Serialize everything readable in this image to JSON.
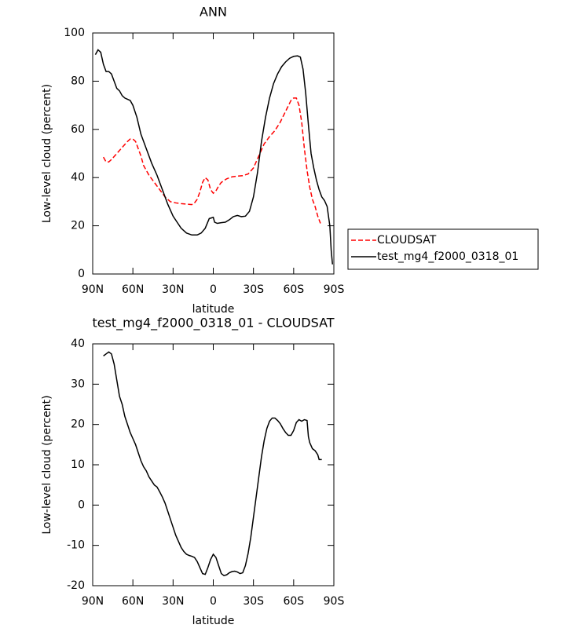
{
  "chart_data": [
    {
      "type": "line",
      "title": "ANN",
      "xlabel": "latitude",
      "ylabel": "Low-level cloud (percent)",
      "xlim": [
        90,
        -90
      ],
      "ylim": [
        0,
        100
      ],
      "xticks": [
        {
          "value": 90,
          "label": "90N"
        },
        {
          "value": 60,
          "label": "60N"
        },
        {
          "value": 30,
          "label": "30N"
        },
        0,
        {
          "value": -30,
          "label": "30S"
        },
        {
          "value": -60,
          "label": "60S"
        },
        {
          "value": -90,
          "label": "90S"
        }
      ],
      "yticks": [
        0,
        20,
        40,
        60,
        80,
        100
      ],
      "legend": "right",
      "series": [
        {
          "name": "CLOUDSAT",
          "color": "#ff0000",
          "line_style": "dashed",
          "x": [
            82,
            80,
            78,
            76,
            72,
            68,
            64,
            62,
            60,
            58,
            56,
            54,
            52,
            48,
            44,
            40,
            36,
            32,
            28,
            24,
            20,
            16,
            14,
            12,
            10,
            8,
            6,
            4,
            2,
            0,
            -2,
            -4,
            -6,
            -10,
            -14,
            -18,
            -22,
            -26,
            -30,
            -34,
            -38,
            -42,
            -46,
            -50,
            -54,
            -58,
            -60,
            -62,
            -64,
            -66,
            -68,
            -70,
            -72,
            -74,
            -76,
            -78,
            -80
          ],
          "values": [
            48.5,
            46.5,
            46.5,
            47.5,
            50,
            52.5,
            55,
            56,
            56,
            55,
            52,
            49,
            45,
            41,
            38,
            35,
            32,
            30,
            29.5,
            29.2,
            29,
            28.8,
            29.5,
            31,
            34,
            38,
            40,
            39,
            35,
            33.5,
            34.5,
            36.5,
            38,
            39.5,
            40.3,
            40.6,
            40.8,
            41.5,
            44,
            49,
            54,
            57,
            59.5,
            63,
            67.5,
            72,
            73,
            73,
            70,
            63,
            52,
            43,
            36,
            31,
            28,
            24,
            21
          ]
        },
        {
          "name": "test_mg4_f2000_0318_01",
          "color": "#000000",
          "line_style": "solid",
          "x": [
            88,
            86,
            84,
            82,
            80,
            78,
            76,
            74,
            72,
            70,
            68,
            66,
            64,
            62,
            60,
            57,
            54,
            50,
            46,
            42,
            38,
            34,
            30,
            27,
            24,
            20,
            16,
            12,
            9,
            6,
            3,
            0,
            -1,
            -3,
            -6,
            -9,
            -12,
            -15,
            -18,
            -21,
            -24,
            -27,
            -30,
            -33,
            -36,
            -39,
            -42,
            -45,
            -48,
            -51,
            -54,
            -57,
            -60,
            -63,
            -65,
            -67,
            -69,
            -71,
            -73,
            -75,
            -77,
            -79,
            -81,
            -83,
            -85,
            -87,
            -88,
            -89
          ],
          "values": [
            91,
            93,
            92,
            87,
            84,
            84,
            83,
            80,
            77,
            76,
            74,
            73,
            72.5,
            72,
            70,
            65,
            58,
            52,
            46,
            41,
            35,
            29,
            24,
            21.5,
            19,
            17,
            16.2,
            16.2,
            17,
            19,
            23,
            23.5,
            21.5,
            21,
            21.3,
            21.5,
            22.5,
            23.8,
            24.3,
            23.8,
            24,
            26,
            32,
            42,
            55,
            65,
            73,
            79,
            83,
            86,
            88,
            89.5,
            90.3,
            90.5,
            90,
            85,
            75,
            62,
            50,
            44,
            39,
            35,
            32,
            30.5,
            28,
            20,
            10,
            4
          ]
        }
      ]
    },
    {
      "type": "line",
      "title": "test_mg4_f2000_0318_01 - CLOUDSAT",
      "xlabel": "latitude",
      "ylabel": "Low-level cloud (percent)",
      "xlim": [
        90,
        -90
      ],
      "ylim": [
        -20,
        40
      ],
      "xticks": [
        {
          "value": 90,
          "label": "90N"
        },
        {
          "value": 60,
          "label": "60N"
        },
        {
          "value": 30,
          "label": "30N"
        },
        0,
        {
          "value": -30,
          "label": "30S"
        },
        {
          "value": -60,
          "label": "60S"
        },
        {
          "value": -90,
          "label": "90S"
        }
      ],
      "yticks": [
        -20,
        -10,
        0,
        10,
        20,
        30,
        40
      ],
      "series": [
        {
          "color": "#000000",
          "line_style": "solid",
          "x": [
            82,
            80,
            78,
            76,
            74,
            72,
            70,
            68,
            66,
            64,
            62,
            60,
            58,
            56,
            54,
            52,
            50,
            48,
            46,
            44,
            42,
            40,
            38,
            36,
            34,
            32,
            30,
            28,
            26,
            24,
            22,
            20,
            18,
            16,
            14,
            12,
            10,
            8,
            6,
            4,
            2,
            0,
            -2,
            -4,
            -6,
            -8,
            -10,
            -12,
            -14,
            -16,
            -18,
            -20,
            -22,
            -24,
            -26,
            -28,
            -30,
            -32,
            -34,
            -36,
            -38,
            -40,
            -42,
            -44,
            -46,
            -48,
            -50,
            -52,
            -54,
            -56,
            -58,
            -60,
            -62,
            -64,
            -66,
            -68,
            -70,
            -71,
            -72,
            -74,
            -76,
            -78,
            -79,
            -81
          ],
          "values": [
            37,
            37.5,
            38,
            37.5,
            35,
            31,
            27,
            25,
            22,
            20,
            18,
            16.5,
            15,
            13,
            11,
            9.5,
            8.5,
            7,
            6,
            5,
            4.5,
            3.3,
            2,
            0.5,
            -1.5,
            -3.5,
            -5.5,
            -7.5,
            -9,
            -10.5,
            -11.5,
            -12.2,
            -12.5,
            -12.7,
            -13,
            -14,
            -15.5,
            -17,
            -17.2,
            -15.5,
            -13.5,
            -12.2,
            -13,
            -15,
            -17,
            -17.5,
            -17.3,
            -16.8,
            -16.5,
            -16.4,
            -16.6,
            -17,
            -16.8,
            -15,
            -12,
            -8,
            -3,
            2,
            7,
            12,
            16,
            19,
            20.8,
            21.6,
            21.6,
            21,
            20.2,
            19,
            18,
            17.3,
            17.3,
            18.5,
            20.5,
            21.2,
            20.8,
            21.2,
            21,
            17,
            15.5,
            14,
            13.5,
            12.5,
            11.3,
            11.3
          ]
        }
      ]
    }
  ]
}
